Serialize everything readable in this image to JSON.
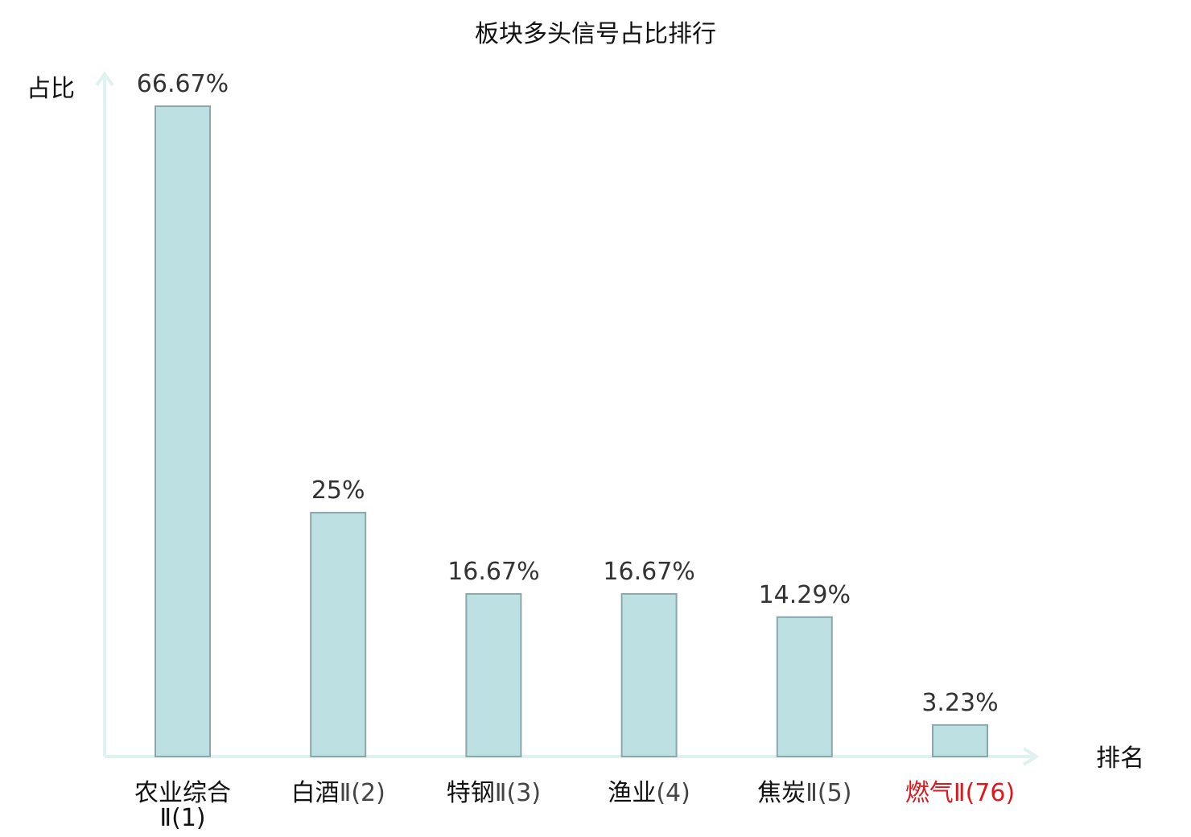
{
  "chart_data": {
    "type": "bar",
    "title": "板块多头信号占比排行",
    "ylabel": "占比",
    "xlabel": "排名",
    "ylim": [
      0,
      70
    ],
    "grid": false,
    "unit": "%",
    "categories": [
      {
        "name": "农业综合",
        "rank": "Ⅱ(1)",
        "highlight": false
      },
      {
        "name": "白酒",
        "rank": "Ⅱ(2)",
        "highlight": false
      },
      {
        "name": "特钢",
        "rank": "Ⅱ(3)",
        "highlight": false
      },
      {
        "name": "渔业",
        "rank": "(4)",
        "highlight": false
      },
      {
        "name": "焦炭",
        "rank": "Ⅱ(5)",
        "highlight": false
      },
      {
        "name": "燃气",
        "rank": "Ⅱ(76)",
        "highlight": true
      }
    ],
    "values": [
      66.67,
      25,
      16.67,
      16.67,
      14.29,
      3.23
    ],
    "value_labels": [
      "66.67%",
      "25%",
      "16.67%",
      "16.67%",
      "14.29%",
      "3.23%"
    ]
  },
  "colors": {
    "bar_fill": "#bde0e3",
    "bar_stroke": "#8aa8ac",
    "axis": "#e0f2ef",
    "highlight_text": "#e0161b",
    "text": "#111111",
    "value_text": "#333333"
  }
}
